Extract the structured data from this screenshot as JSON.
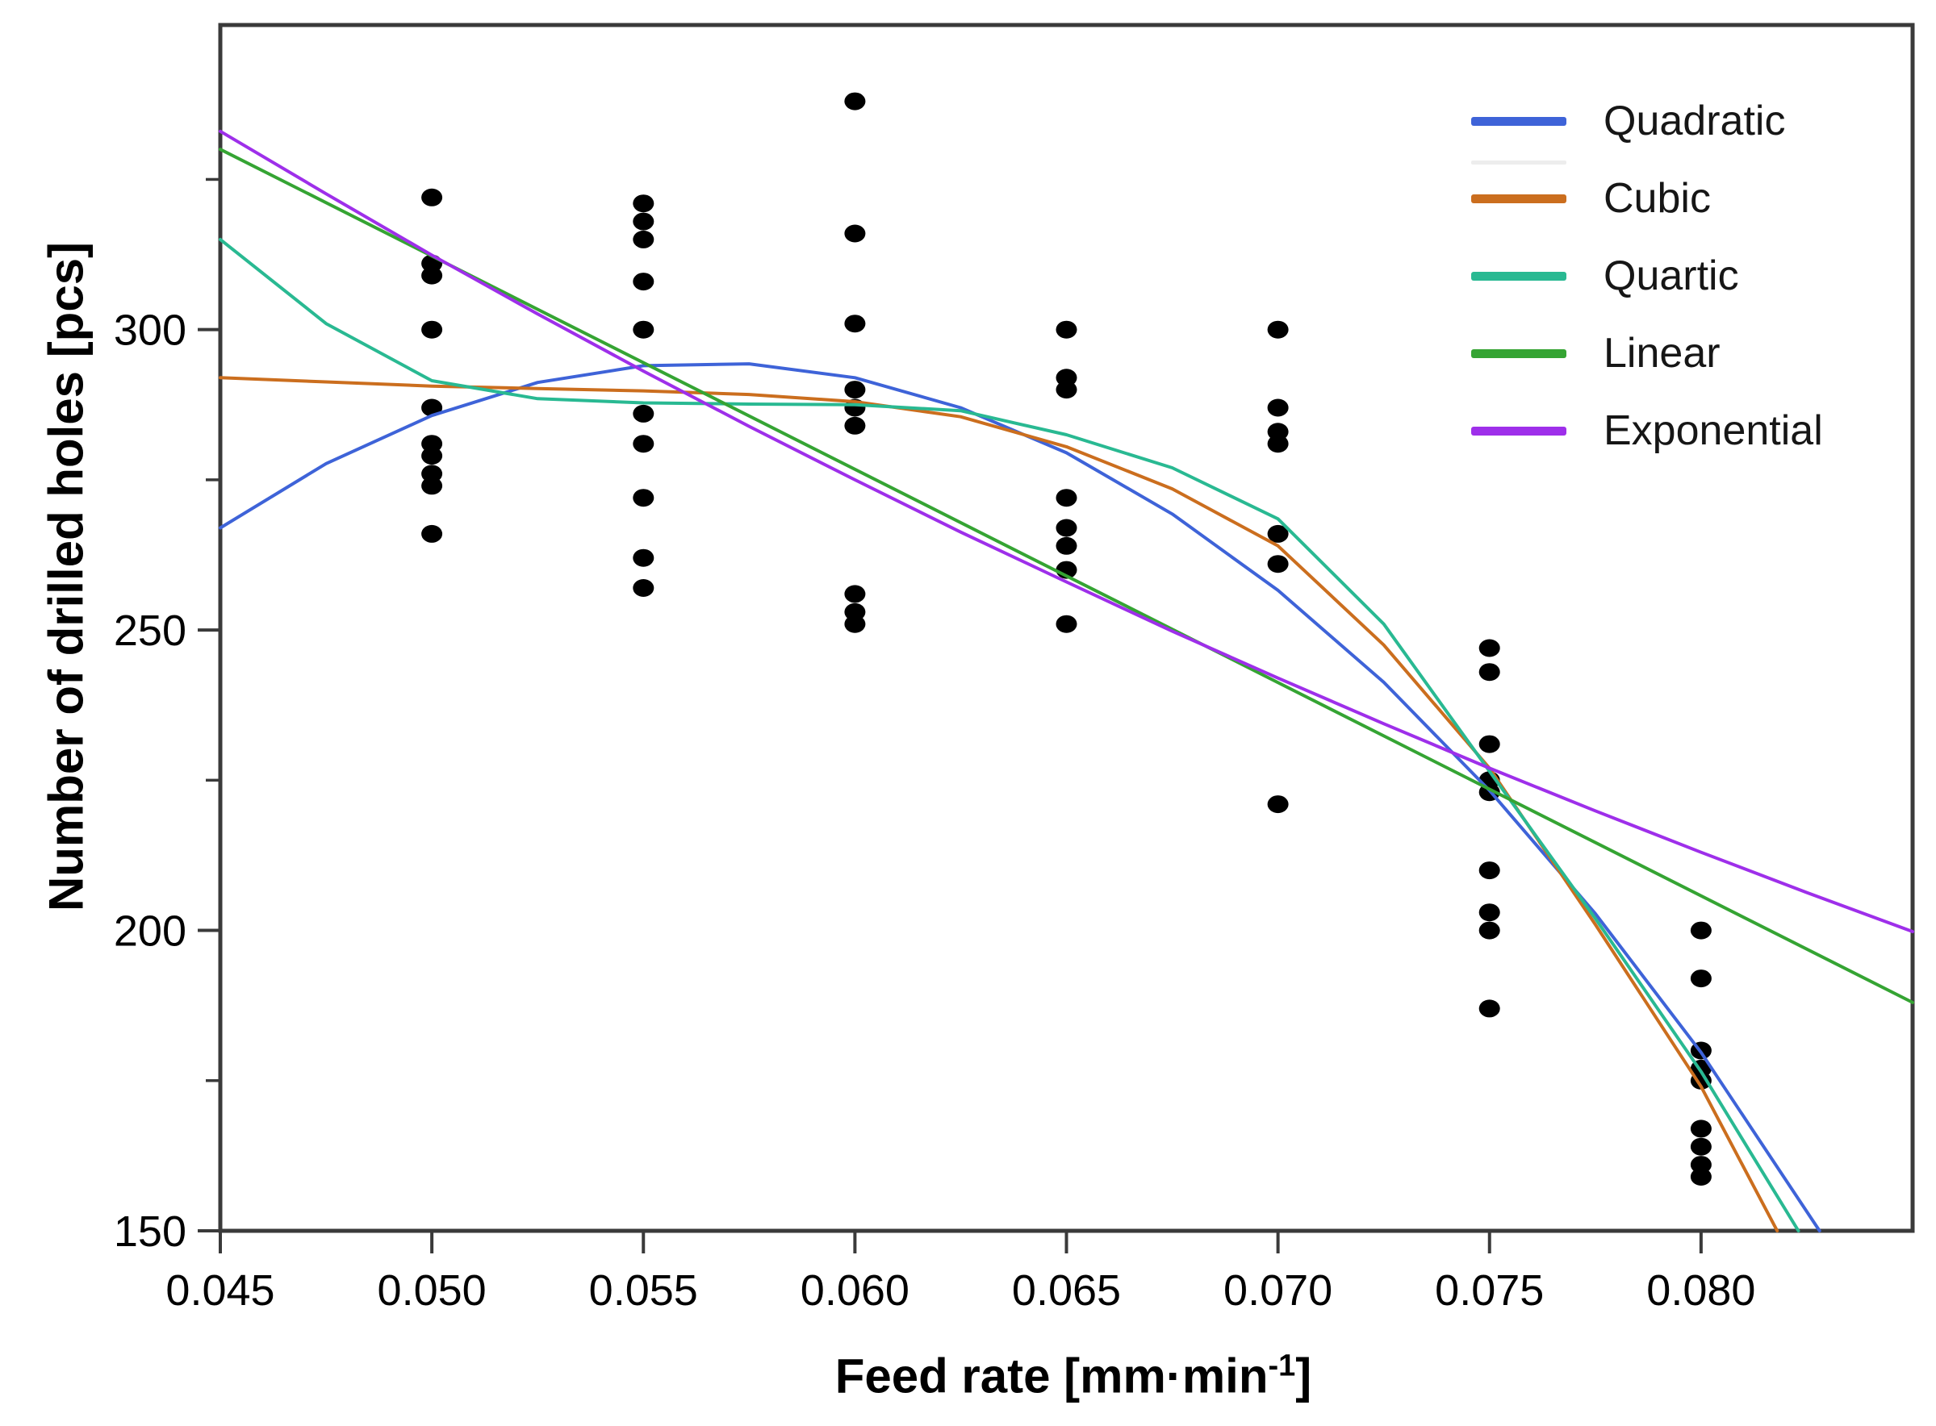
{
  "chart_data": {
    "type": "scatter",
    "title": "",
    "xlabel": "Feed rate [mm·min^-1]",
    "xlabel_parts": {
      "prefix": "Feed rate [mm·min",
      "sup": "-1",
      "suffix": "]"
    },
    "ylabel": "Number of drilled holes [pcs]",
    "xlim": [
      0.045,
      0.085
    ],
    "ylim": [
      150,
      350.7
    ],
    "grid": false,
    "legend_position": "upper right",
    "point_color": "#000000",
    "axis_color": "#3a3a3a",
    "x_ticks": {
      "values": [
        0.045,
        0.05,
        0.055,
        0.06,
        0.065,
        0.07,
        0.075,
        0.08
      ],
      "labels": [
        "0.045",
        "0.050",
        "0.055",
        "0.060",
        "0.065",
        "0.070",
        "0.075",
        "0.080"
      ]
    },
    "y_ticks": {
      "values": [
        150,
        200,
        250,
        300
      ],
      "labels": [
        "150",
        "200",
        "250",
        "300"
      ],
      "minor": [
        175,
        225,
        275,
        325
      ]
    },
    "scatter": [
      {
        "x": 0.05,
        "y": [
          322,
          311,
          309,
          300,
          287,
          281,
          279,
          276,
          274,
          266
        ]
      },
      {
        "x": 0.055,
        "y": [
          321,
          318,
          315,
          308,
          300,
          286,
          281,
          272,
          262,
          257
        ]
      },
      {
        "x": 0.06,
        "y": [
          338,
          316,
          301,
          290,
          287,
          284,
          256,
          253,
          251
        ]
      },
      {
        "x": 0.065,
        "y": [
          300,
          292,
          290,
          272,
          267,
          264,
          260,
          251
        ]
      },
      {
        "x": 0.07,
        "y": [
          300,
          287,
          283,
          281,
          266,
          261,
          221
        ]
      },
      {
        "x": 0.075,
        "y": [
          247,
          243,
          231,
          225,
          223,
          210,
          203,
          200,
          187
        ]
      },
      {
        "x": 0.08,
        "y": [
          200,
          192,
          180,
          177,
          175,
          167,
          164,
          161,
          159
        ]
      }
    ],
    "fits": [
      {
        "name": "Quadratic",
        "color": "#3E63D8",
        "x": [
          0.045,
          0.0475,
          0.05,
          0.0525,
          0.055,
          0.0575,
          0.06,
          0.0625,
          0.065,
          0.0675,
          0.07,
          0.0725,
          0.075,
          0.0775,
          0.08,
          0.0828
        ],
        "y": [
          267.0,
          277.7,
          285.7,
          291.2,
          294.0,
          294.3,
          292.0,
          287.0,
          279.5,
          269.3,
          256.6,
          241.3,
          223.3,
          202.8,
          179.7,
          150
        ]
      },
      {
        "name": "Cubic",
        "color": "#CB6E1E",
        "x": [
          0.045,
          0.0475,
          0.05,
          0.0525,
          0.055,
          0.0575,
          0.06,
          0.0625,
          0.065,
          0.0675,
          0.07,
          0.0725,
          0.075,
          0.0775,
          0.08,
          0.0818
        ],
        "y": [
          292.0,
          291.3,
          290.6,
          290.2,
          289.8,
          289.2,
          288.0,
          285.5,
          280.5,
          273.5,
          264.0,
          247.5,
          227.0,
          201.0,
          174.0,
          150
        ]
      },
      {
        "name": "Quartic",
        "color": "#29B992",
        "x": [
          0.045,
          0.0475,
          0.05,
          0.0525,
          0.055,
          0.0575,
          0.06,
          0.0625,
          0.065,
          0.0675,
          0.07,
          0.0725,
          0.075,
          0.0775,
          0.08,
          0.0823
        ],
        "y": [
          315.0,
          301.0,
          291.5,
          288.5,
          287.8,
          287.6,
          287.5,
          286.5,
          282.5,
          277.0,
          268.5,
          251.0,
          226.5,
          202.0,
          176.5,
          150
        ]
      },
      {
        "name": "Linear",
        "color": "#35A433",
        "x": [
          0.045,
          0.085
        ],
        "y": [
          330,
          188
        ]
      },
      {
        "name": "Exponential",
        "color": "#9E2FEA",
        "x": [
          0.045,
          0.0475,
          0.05,
          0.0525,
          0.055,
          0.0575,
          0.06,
          0.0625,
          0.065,
          0.0675,
          0.07,
          0.0725,
          0.075,
          0.0775,
          0.08,
          0.0825,
          0.085
        ],
        "y": [
          333.0,
          322.6,
          312.4,
          302.6,
          293.1,
          283.9,
          275.0,
          266.3,
          258.0,
          249.8,
          242.0,
          234.4,
          227.0,
          219.9,
          213.0,
          206.3,
          199.8
        ]
      }
    ],
    "legend": {
      "items": [
        "Quadratic",
        "Cubic",
        "Quartic",
        "Linear",
        "Exponential"
      ],
      "faint_divider_after_index": 0,
      "faint_divider_color": "#ededed"
    }
  }
}
